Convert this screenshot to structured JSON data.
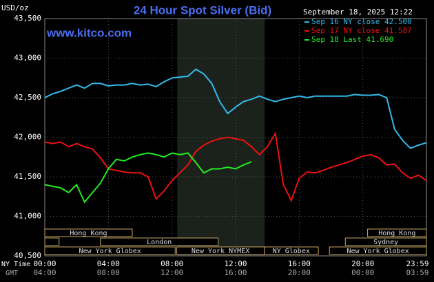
{
  "chart_data": {
    "type": "line",
    "title": "24 Hour Spot Silver (Bid)",
    "y_label": "USD/oz",
    "watermark": "www.kitco.com",
    "timestamp": "September 18, 2025 12:22",
    "x_row_label": "NY Time",
    "x2_row_label": "GMT",
    "xlim": [
      0,
      24
    ],
    "xticks": [
      {
        "value": 0,
        "label": "00:00"
      },
      {
        "value": 4,
        "label": "04:00"
      },
      {
        "value": 8,
        "label": "08:00"
      },
      {
        "value": 12,
        "label": "12:00"
      },
      {
        "value": 16,
        "label": "16:00"
      },
      {
        "value": 20,
        "label": "20:00"
      },
      {
        "value": 23.98,
        "label": "23:59"
      }
    ],
    "gmt_labels": [
      "04:00",
      "08:00",
      "12:00",
      "16:00",
      "20:00",
      "00:00",
      "03:59"
    ],
    "ylim": [
      40.5,
      43.5
    ],
    "yticks": [
      {
        "value": 40.5,
        "label": "40,500"
      },
      {
        "value": 41,
        "label": "41,000"
      },
      {
        "value": 41.5,
        "label": "41,500"
      },
      {
        "value": 42,
        "label": "42,000"
      },
      {
        "value": 42.5,
        "label": "42,500"
      },
      {
        "value": 43,
        "label": "43,000"
      },
      {
        "value": 43.5,
        "label": "43,500"
      }
    ],
    "grid": true,
    "legend": "top-right",
    "shaded": [
      8.33,
      13.83
    ],
    "x": [
      0,
      0.5,
      1,
      1.5,
      2,
      2.5,
      3,
      3.5,
      4,
      4.5,
      5,
      5.5,
      6,
      6.5,
      7,
      7.5,
      8,
      8.5,
      9,
      9.5,
      10,
      10.5,
      11,
      11.5,
      12,
      12.5,
      13,
      13.5,
      14,
      14.5,
      15,
      15.5,
      16,
      16.5,
      17,
      17.5,
      18,
      18.5,
      19,
      19.5,
      20,
      20.5,
      21,
      21.5,
      22,
      22.5,
      23,
      23.5,
      24
    ],
    "series": [
      {
        "name": "Sep 16 NY close 42.500",
        "color": "#33bbee",
        "values": [
          42.5,
          42.55,
          42.58,
          42.62,
          42.66,
          42.62,
          42.68,
          42.68,
          42.65,
          42.66,
          42.66,
          42.68,
          42.66,
          42.67,
          42.64,
          42.7,
          42.75,
          42.76,
          42.77,
          42.86,
          42.8,
          42.68,
          42.45,
          42.3,
          42.38,
          42.45,
          42.48,
          42.52,
          42.48,
          42.45,
          42.48,
          42.5,
          42.52,
          42.5,
          42.52,
          42.52,
          42.52,
          42.52,
          42.52,
          42.54,
          42.53,
          42.53,
          42.54,
          42.5,
          42.1,
          41.96,
          41.86,
          41.9,
          41.93
        ]
      },
      {
        "name": "Sep 17 NY close 41.587",
        "color": "#ee1111",
        "values": [
          41.94,
          41.92,
          41.94,
          41.88,
          41.92,
          41.88,
          41.85,
          41.74,
          41.6,
          41.58,
          41.56,
          41.55,
          41.55,
          41.5,
          41.22,
          41.32,
          41.45,
          41.55,
          41.65,
          41.82,
          41.9,
          41.95,
          41.98,
          42.0,
          41.98,
          41.96,
          41.88,
          41.78,
          41.88,
          42.05,
          41.4,
          41.2,
          41.48,
          41.56,
          41.55,
          41.58,
          41.62,
          41.65,
          41.68,
          41.72,
          41.76,
          41.78,
          41.74,
          41.65,
          41.66,
          41.55,
          41.48,
          41.52,
          41.45
        ]
      },
      {
        "name": "Sep 18 Last 41.690",
        "color": "#22ee22",
        "values": [
          41.4,
          41.38,
          41.36,
          41.3,
          41.4,
          41.18,
          41.3,
          41.42,
          41.6,
          41.72,
          41.7,
          41.75,
          41.78,
          41.8,
          41.78,
          41.75,
          41.8,
          41.78,
          41.8,
          41.68,
          41.55,
          41.6,
          41.6,
          41.62,
          41.6,
          41.65,
          41.69,
          null,
          null,
          null,
          null,
          null,
          null,
          null,
          null,
          null,
          null,
          null,
          null,
          null,
          null,
          null,
          null,
          null,
          null,
          null,
          null,
          null,
          null
        ]
      }
    ],
    "sessions": [
      [
        {
          "label": "Hong Kong",
          "start": 0,
          "end": 5.5
        },
        {
          "label": "Hong Kong",
          "start": 20.3,
          "end": 24
        }
      ],
      [
        {
          "label": null,
          "start": 0,
          "end": 0.9
        },
        {
          "label": "London",
          "start": 3.5,
          "end": 10.9
        },
        {
          "label": "Sydney",
          "start": 18.9,
          "end": 24
        }
      ],
      [
        {
          "label": "New York Globex",
          "start": 0,
          "end": 8.2
        },
        {
          "label": "New York NYMEX",
          "start": 8.3,
          "end": 13.8
        },
        {
          "label": "NY Globex",
          "start": 13.8,
          "end": 17.2
        },
        {
          "label": "New York Globex",
          "start": 17.9,
          "end": 24
        }
      ]
    ]
  }
}
